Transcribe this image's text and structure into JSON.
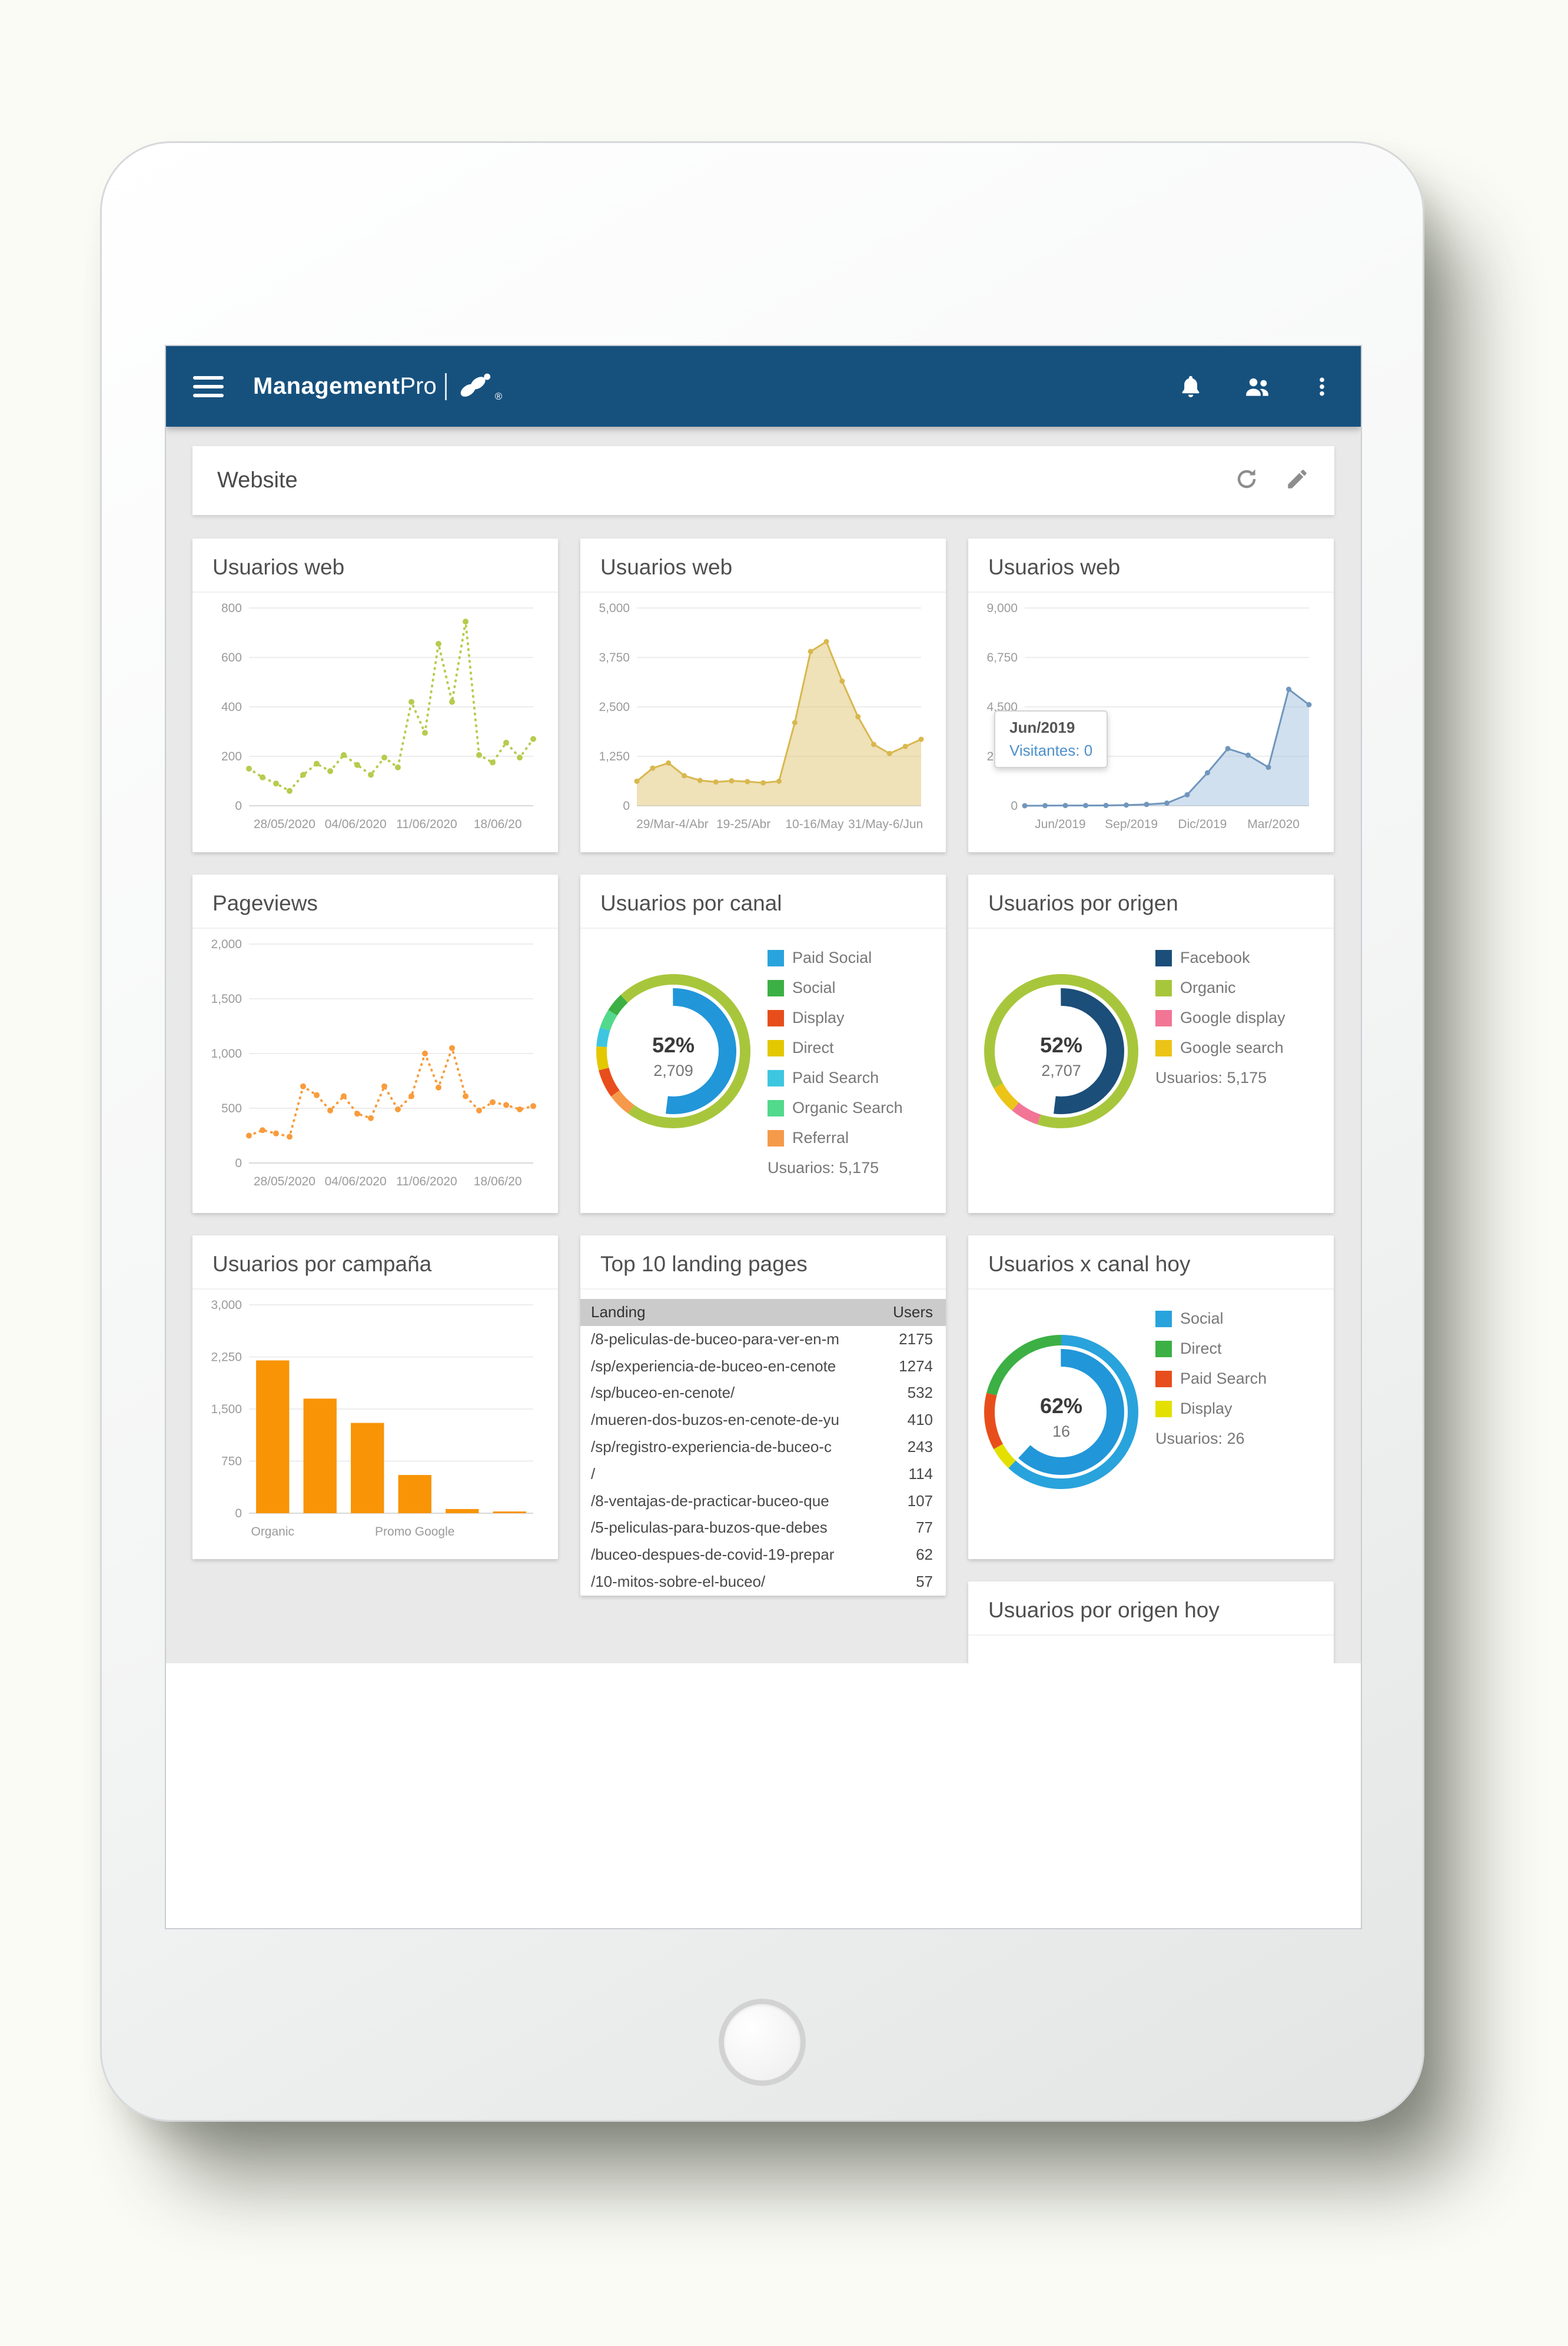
{
  "app": {
    "brand_bold": "Management",
    "brand_light": "Pro",
    "registered": "®"
  },
  "icons": {
    "menu": "hamburger",
    "notifications": "bell",
    "users": "people",
    "more": "kebab-dots",
    "refresh": "circular-arrow",
    "edit": "pencil",
    "home": "home-button-ring"
  },
  "page": {
    "title": "Website"
  },
  "cards": {
    "web1": {
      "title": "Usuarios web"
    },
    "web2": {
      "title": "Usuarios web"
    },
    "web3": {
      "title": "Usuarios web"
    },
    "pageviews": {
      "title": "Pageviews"
    },
    "canal": {
      "title": "Usuarios por canal"
    },
    "origen": {
      "title": "Usuarios por origen"
    },
    "campana": {
      "title": "Usuarios por campaña"
    },
    "landing": {
      "title": "Top 10 landing pages"
    },
    "canal_hoy": {
      "title": "Usuarios x canal hoy"
    },
    "origen_hoy": {
      "title": "Usuarios por origen hoy"
    }
  },
  "charts": {
    "web1": {
      "type": "line",
      "dotted": true,
      "color": "#b5cc4e",
      "ymax": 800,
      "yticks": [
        0,
        200,
        400,
        600,
        800
      ],
      "xlabels": [
        "28/05/2020",
        "04/06/2020",
        "11/06/2020",
        "18/06/20"
      ],
      "values": [
        150,
        115,
        90,
        60,
        125,
        170,
        140,
        205,
        165,
        125,
        195,
        155,
        420,
        295,
        655,
        420,
        745,
        205,
        175,
        255,
        195,
        270
      ]
    },
    "web2": {
      "type": "area",
      "color": "#d8b84e",
      "fill": "rgba(226,201,126,0.55)",
      "ymax": 5000,
      "yticks": [
        0,
        1250,
        2500,
        3750,
        5000
      ],
      "xlabels": [
        "29/Mar-4/Abr",
        "19-25/Abr",
        "10-16/May",
        "31/May-6/Jun"
      ],
      "values": [
        620,
        950,
        1080,
        760,
        640,
        600,
        630,
        610,
        580,
        620,
        2100,
        3900,
        4150,
        3150,
        2250,
        1550,
        1320,
        1500,
        1680
      ]
    },
    "web3": {
      "type": "area",
      "color": "#7096bd",
      "fill": "rgba(164,193,222,0.5)",
      "ymax": 9000,
      "yticks": [
        0,
        2250,
        4500,
        6750,
        9000
      ],
      "xlabels": [
        "Jun/2019",
        "Sep/2019",
        "Dic/2019",
        "Mar/2020"
      ],
      "values": [
        0,
        5,
        10,
        10,
        15,
        30,
        60,
        120,
        500,
        1500,
        2600,
        2300,
        1750,
        5300,
        4600
      ],
      "tooltip": {
        "title": "Jun/2019",
        "value": "Visitantes: 0"
      }
    },
    "pageviews": {
      "type": "line",
      "dotted": true,
      "color": "#f89c3c",
      "ymax": 2000,
      "yticks": [
        0,
        500,
        1000,
        1500,
        2000
      ],
      "xlabels": [
        "28/05/2020",
        "04/06/2020",
        "11/06/2020",
        "18/06/20"
      ],
      "values": [
        250,
        300,
        270,
        240,
        700,
        620,
        480,
        610,
        450,
        410,
        700,
        490,
        610,
        1000,
        690,
        1050,
        610,
        480,
        555,
        530,
        490,
        520
      ]
    },
    "campana": {
      "type": "bar",
      "color": "#f89406",
      "ymax": 3000,
      "yticks": [
        0,
        750,
        1500,
        2250,
        3000
      ],
      "values": [
        2200,
        1650,
        1300,
        550,
        60,
        25
      ],
      "bar_labels": {
        "0": "Organic",
        "3": "Promo Google"
      }
    },
    "canal": {
      "type": "donut",
      "center": {
        "pct": "52%",
        "sub": "2,709"
      },
      "rings": [
        {
          "r": 122,
          "w": 18,
          "segments": [
            {
              "color": "#a8c63c",
              "pct": 60
            },
            {
              "color": "#f59a4b",
              "pct": 5
            },
            {
              "color": "#e84e1b",
              "pct": 6
            },
            {
              "color": "#e3c800",
              "pct": 5
            },
            {
              "color": "#3ec6e0",
              "pct": 4
            },
            {
              "color": "#52d98b",
              "pct": 4
            },
            {
              "color": "#3cb044",
              "pct": 4
            },
            {
              "color": "#a8c63c",
              "pct": 12
            }
          ]
        },
        {
          "r": 92,
          "w": 30,
          "segments": [
            {
              "color": "#2196d9",
              "pct": 52
            },
            {
              "color": "none",
              "pct": 48
            }
          ]
        }
      ],
      "legend": [
        {
          "label": "Paid Social",
          "color": "#29a3dc"
        },
        {
          "label": "Social",
          "color": "#3cb044"
        },
        {
          "label": "Display",
          "color": "#e84e1b"
        },
        {
          "label": "Direct",
          "color": "#e3c800"
        },
        {
          "label": "Paid Search",
          "color": "#3ec6e0"
        },
        {
          "label": "Organic Search",
          "color": "#52d98b"
        },
        {
          "label": "Referral",
          "color": "#f59a4b"
        }
      ],
      "total_label": "Usuarios: 5,175"
    },
    "origen": {
      "type": "donut",
      "center": {
        "pct": "52%",
        "sub": "2,707"
      },
      "rings": [
        {
          "r": 122,
          "w": 18,
          "segments": [
            {
              "color": "#a8c63c",
              "pct": 55
            },
            {
              "color": "#f27596",
              "pct": 6
            },
            {
              "color": "#ecc418",
              "pct": 6
            },
            {
              "color": "#a8c63c",
              "pct": 33
            }
          ]
        },
        {
          "r": 92,
          "w": 30,
          "segments": [
            {
              "color": "#1b4e79",
              "pct": 52
            },
            {
              "color": "none",
              "pct": 48
            }
          ]
        }
      ],
      "legend": [
        {
          "label": "Facebook",
          "color": "#1b4e79"
        },
        {
          "label": "Organic",
          "color": "#a8c63c"
        },
        {
          "label": "Google display",
          "color": "#f27596"
        },
        {
          "label": "Google search",
          "color": "#ecc418"
        }
      ],
      "total_label": "Usuarios: 5,175"
    },
    "canal_hoy": {
      "type": "donut",
      "center": {
        "pct": "62%",
        "sub": "16"
      },
      "rings": [
        {
          "r": 122,
          "w": 18,
          "segments": [
            {
              "color": "#29a3dc",
              "pct": 62
            },
            {
              "color": "#e3e000",
              "pct": 5
            },
            {
              "color": "#e84e1b",
              "pct": 12
            },
            {
              "color": "#3cb044",
              "pct": 21
            }
          ]
        },
        {
          "r": 92,
          "w": 30,
          "segments": [
            {
              "color": "#2196d9",
              "pct": 62
            },
            {
              "color": "none",
              "pct": 38
            }
          ]
        }
      ],
      "legend": [
        {
          "label": "Social",
          "color": "#29a3dc"
        },
        {
          "label": "Direct",
          "color": "#3cb044"
        },
        {
          "label": "Paid Search",
          "color": "#e84e1b"
        },
        {
          "label": "Display",
          "color": "#e3e000"
        }
      ],
      "total_label": "Usuarios: 26"
    },
    "landing_table": {
      "type": "table",
      "headers": [
        "Landing",
        "Users"
      ],
      "rows": [
        [
          "/8-peliculas-de-buceo-para-ver-en-m",
          2175
        ],
        [
          "/sp/experiencia-de-buceo-en-cenote",
          1274
        ],
        [
          "/sp/buceo-en-cenote/",
          532
        ],
        [
          "/mueren-dos-buzos-en-cenote-de-yu",
          410
        ],
        [
          "/sp/registro-experiencia-de-buceo-c",
          243
        ],
        [
          "/",
          114
        ],
        [
          "/8-ventajas-de-practicar-buceo-que",
          107
        ],
        [
          "/5-peliculas-para-buzos-que-debes",
          77
        ],
        [
          "/buceo-despues-de-covid-19-prepar",
          62
        ],
        [
          "/10-mitos-sobre-el-buceo/",
          57
        ]
      ]
    }
  }
}
